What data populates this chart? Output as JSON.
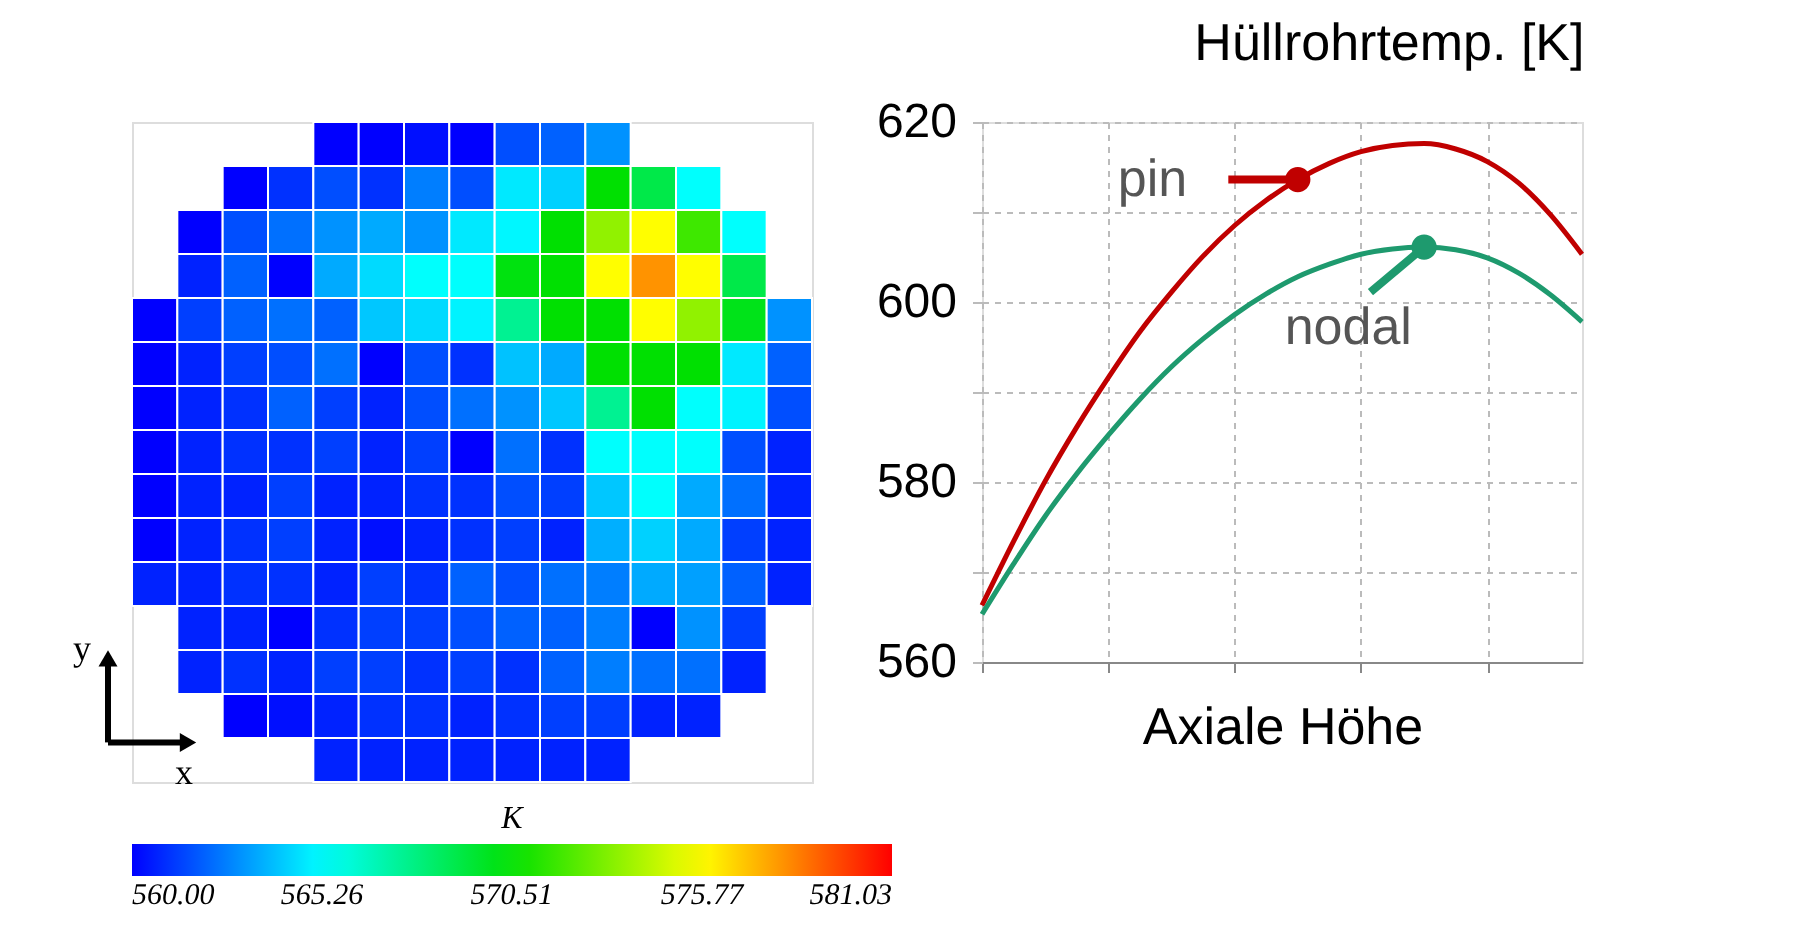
{
  "chart_data": [
    {
      "type": "heatmap",
      "clabel": "K",
      "clim": [
        560,
        581.03
      ],
      "cticks": [
        {
          "value": 560,
          "label": "560.00"
        },
        565.26,
        570.51,
        575.77,
        581.03
      ],
      "tick_labels": false,
      "annotations": [
        "y",
        "x"
      ],
      "categories": [
        null,
        null,
        null,
        null,
        null,
        null,
        null,
        null,
        null,
        null,
        null,
        null,
        null,
        null,
        null
      ],
      "y_categories": [
        null,
        null,
        null,
        null,
        null,
        null,
        null,
        null,
        null,
        null,
        null,
        null,
        null,
        null,
        null
      ],
      "cells": [
        [
          null,
          null,
          null,
          null,
          560.0,
          560.0,
          560.3,
          560.0,
          561.6,
          562.0,
          563.0,
          null,
          null,
          null,
          null
        ],
        [
          null,
          null,
          560.0,
          561.0,
          561.6,
          561.0,
          562.6,
          561.6,
          564.8,
          564.3,
          570.5,
          569.0,
          565.3,
          null,
          null
        ],
        [
          null,
          560.0,
          561.6,
          562.3,
          563.0,
          563.5,
          563.0,
          564.8,
          565.1,
          570.5,
          573.5,
          575.8,
          571.8,
          565.3,
          null
        ],
        [
          null,
          560.7,
          562.0,
          560.0,
          563.5,
          564.5,
          565.3,
          565.3,
          570.2,
          570.5,
          575.8,
          578.0,
          575.8,
          569.0,
          null
        ],
        [
          560.0,
          561.3,
          562.0,
          562.3,
          562.0,
          564.1,
          564.5,
          565.0,
          567.5,
          570.5,
          570.5,
          575.8,
          573.5,
          570.0,
          563.0
        ],
        [
          560.0,
          560.7,
          561.3,
          561.6,
          562.3,
          560.0,
          561.6,
          561.0,
          564.0,
          563.5,
          570.5,
          570.5,
          570.5,
          564.8,
          562.0
        ],
        [
          560.0,
          560.7,
          561.0,
          562.0,
          561.3,
          560.7,
          561.6,
          562.3,
          563.0,
          564.1,
          567.5,
          570.5,
          565.3,
          565.0,
          561.6
        ],
        [
          560.0,
          560.7,
          561.0,
          561.0,
          561.3,
          560.7,
          561.3,
          560.0,
          562.3,
          561.0,
          565.3,
          565.3,
          565.3,
          561.6,
          560.7
        ],
        [
          560.0,
          560.7,
          560.7,
          561.3,
          560.7,
          560.7,
          561.0,
          561.0,
          561.6,
          561.3,
          564.1,
          565.3,
          563.5,
          562.3,
          560.7
        ],
        [
          560.0,
          560.7,
          561.0,
          561.3,
          560.7,
          560.3,
          560.7,
          561.0,
          561.3,
          560.7,
          563.6,
          564.3,
          563.5,
          561.3,
          560.7
        ],
        [
          560.7,
          560.7,
          561.0,
          561.0,
          560.7,
          561.3,
          561.0,
          562.0,
          561.6,
          562.3,
          562.6,
          563.5,
          563.3,
          562.0,
          560.7
        ],
        [
          null,
          560.7,
          560.7,
          560.0,
          561.0,
          561.3,
          561.3,
          561.6,
          562.0,
          562.0,
          562.6,
          560.0,
          563.0,
          561.3,
          null
        ],
        [
          null,
          560.7,
          561.0,
          560.7,
          561.3,
          561.3,
          561.0,
          561.3,
          561.0,
          562.0,
          562.6,
          562.3,
          562.3,
          560.7,
          null
        ],
        [
          null,
          null,
          560.0,
          560.3,
          560.7,
          561.0,
          561.0,
          560.7,
          561.0,
          561.3,
          561.3,
          560.7,
          560.7,
          null,
          null
        ],
        [
          null,
          null,
          null,
          null,
          560.7,
          560.7,
          560.7,
          560.7,
          560.7,
          560.7,
          560.7,
          null,
          null,
          null,
          null
        ]
      ]
    },
    {
      "type": "line",
      "title": "Hüllrohrtemp. [K]",
      "xlabel": "Axiale Höhe",
      "grid": true,
      "tick_labels": "y",
      "categories": [
        null,
        null,
        null,
        null,
        null,
        null,
        null,
        null,
        null,
        null,
        null,
        null,
        null,
        null,
        null,
        null,
        null,
        null,
        null,
        null
      ],
      "ylim": [
        560,
        620
      ],
      "yticks": [
        560,
        {
          "value": 570,
          "label": null
        },
        580,
        {
          "value": 590,
          "label": null
        },
        600,
        {
          "value": 610,
          "label": null
        },
        620
      ],
      "series": [
        {
          "name": "pin",
          "color": "#c00000",
          "values": [
            566.3,
            573.4,
            580.1,
            586.1,
            591.6,
            596.7,
            601.1,
            605.1,
            608.5,
            611.3,
            613.6,
            615.4,
            616.7,
            617.4,
            617.6,
            617.0,
            615.6,
            613.2,
            609.7,
            605.3
          ]
        },
        {
          "name": "nodal",
          "color": "#1e9a6e",
          "values": [
            565.3,
            570.9,
            576.2,
            580.9,
            585.2,
            589.2,
            592.8,
            595.9,
            598.6,
            600.9,
            602.8,
            604.2,
            605.3,
            605.9,
            606.1,
            605.8,
            604.9,
            603.2,
            600.8,
            597.8
          ]
        }
      ]
    }
  ]
}
